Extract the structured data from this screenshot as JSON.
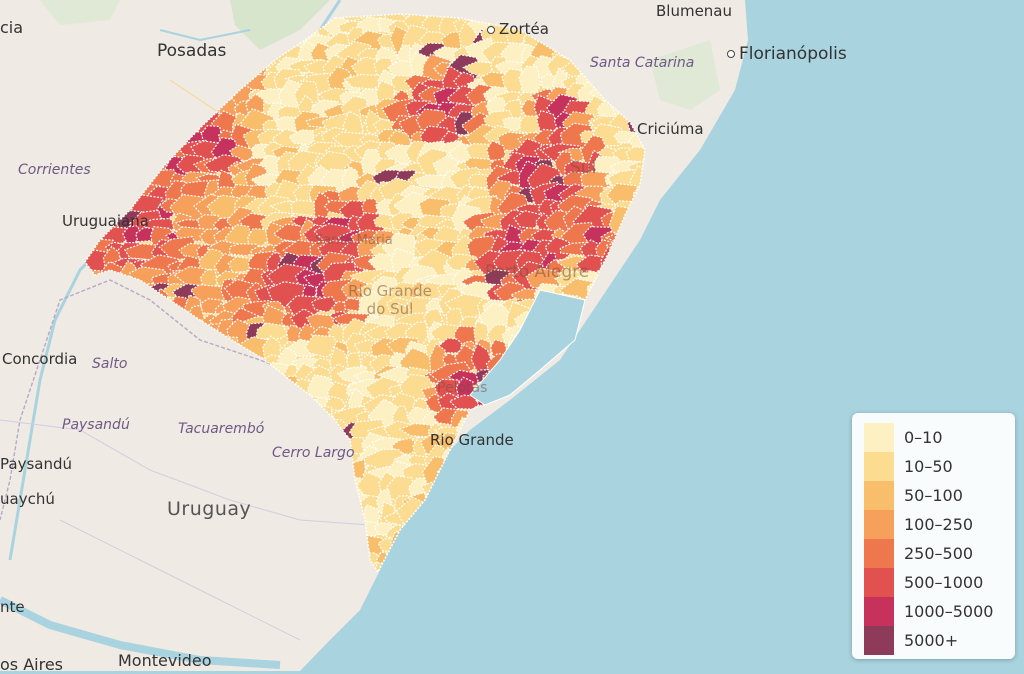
{
  "map": {
    "labels": {
      "posadas": "Posadas",
      "corrientes": "Corrientes",
      "uruguaiana": "Uruguaiana",
      "santa_maria": "Santa Maria",
      "zortea": "Zortéa",
      "blumenau": "Blumenau",
      "florianopolis": "Florianópolis",
      "santa_catarina": "Santa Catarina",
      "criciuma": "Criciúma",
      "sul": "Sul",
      "porto_alegre": "Porto Alegre",
      "rio_grande_do_sul": "Rio Grande do Sul",
      "concordia": "Concordia",
      "salto": "Salto",
      "paysandu_region": "Paysandú",
      "tacuarembo": "Tacuarembó",
      "cerro_largo": "Cerro Largo",
      "paysandu_city": "Paysandú",
      "gualeguaychu": "uaychú",
      "uruguay": "Uruguay",
      "pelotas": "Pelotas",
      "rio_grande": "Rio Grande",
      "montevideo": "Montevideo",
      "buenos_aires": "os Aires",
      "left_edge_top": "cia",
      "left_edge_bottom": "nte"
    },
    "colors": {
      "ocean": "#a9d3df",
      "land": "#efeae3",
      "border": "#ffffff"
    }
  },
  "legend": {
    "items": [
      {
        "label": "0–10",
        "color": "#fdf0c2"
      },
      {
        "label": "10–50",
        "color": "#fbdc91"
      },
      {
        "label": "50–100",
        "color": "#f8be6c"
      },
      {
        "label": "100–250",
        "color": "#f6a05c"
      },
      {
        "label": "250–500",
        "color": "#ef774d"
      },
      {
        "label": "500–1000",
        "color": "#e05150"
      },
      {
        "label": "1000–5000",
        "color": "#c6325b"
      },
      {
        "label": "5000+",
        "color": "#8e3a59"
      }
    ]
  }
}
